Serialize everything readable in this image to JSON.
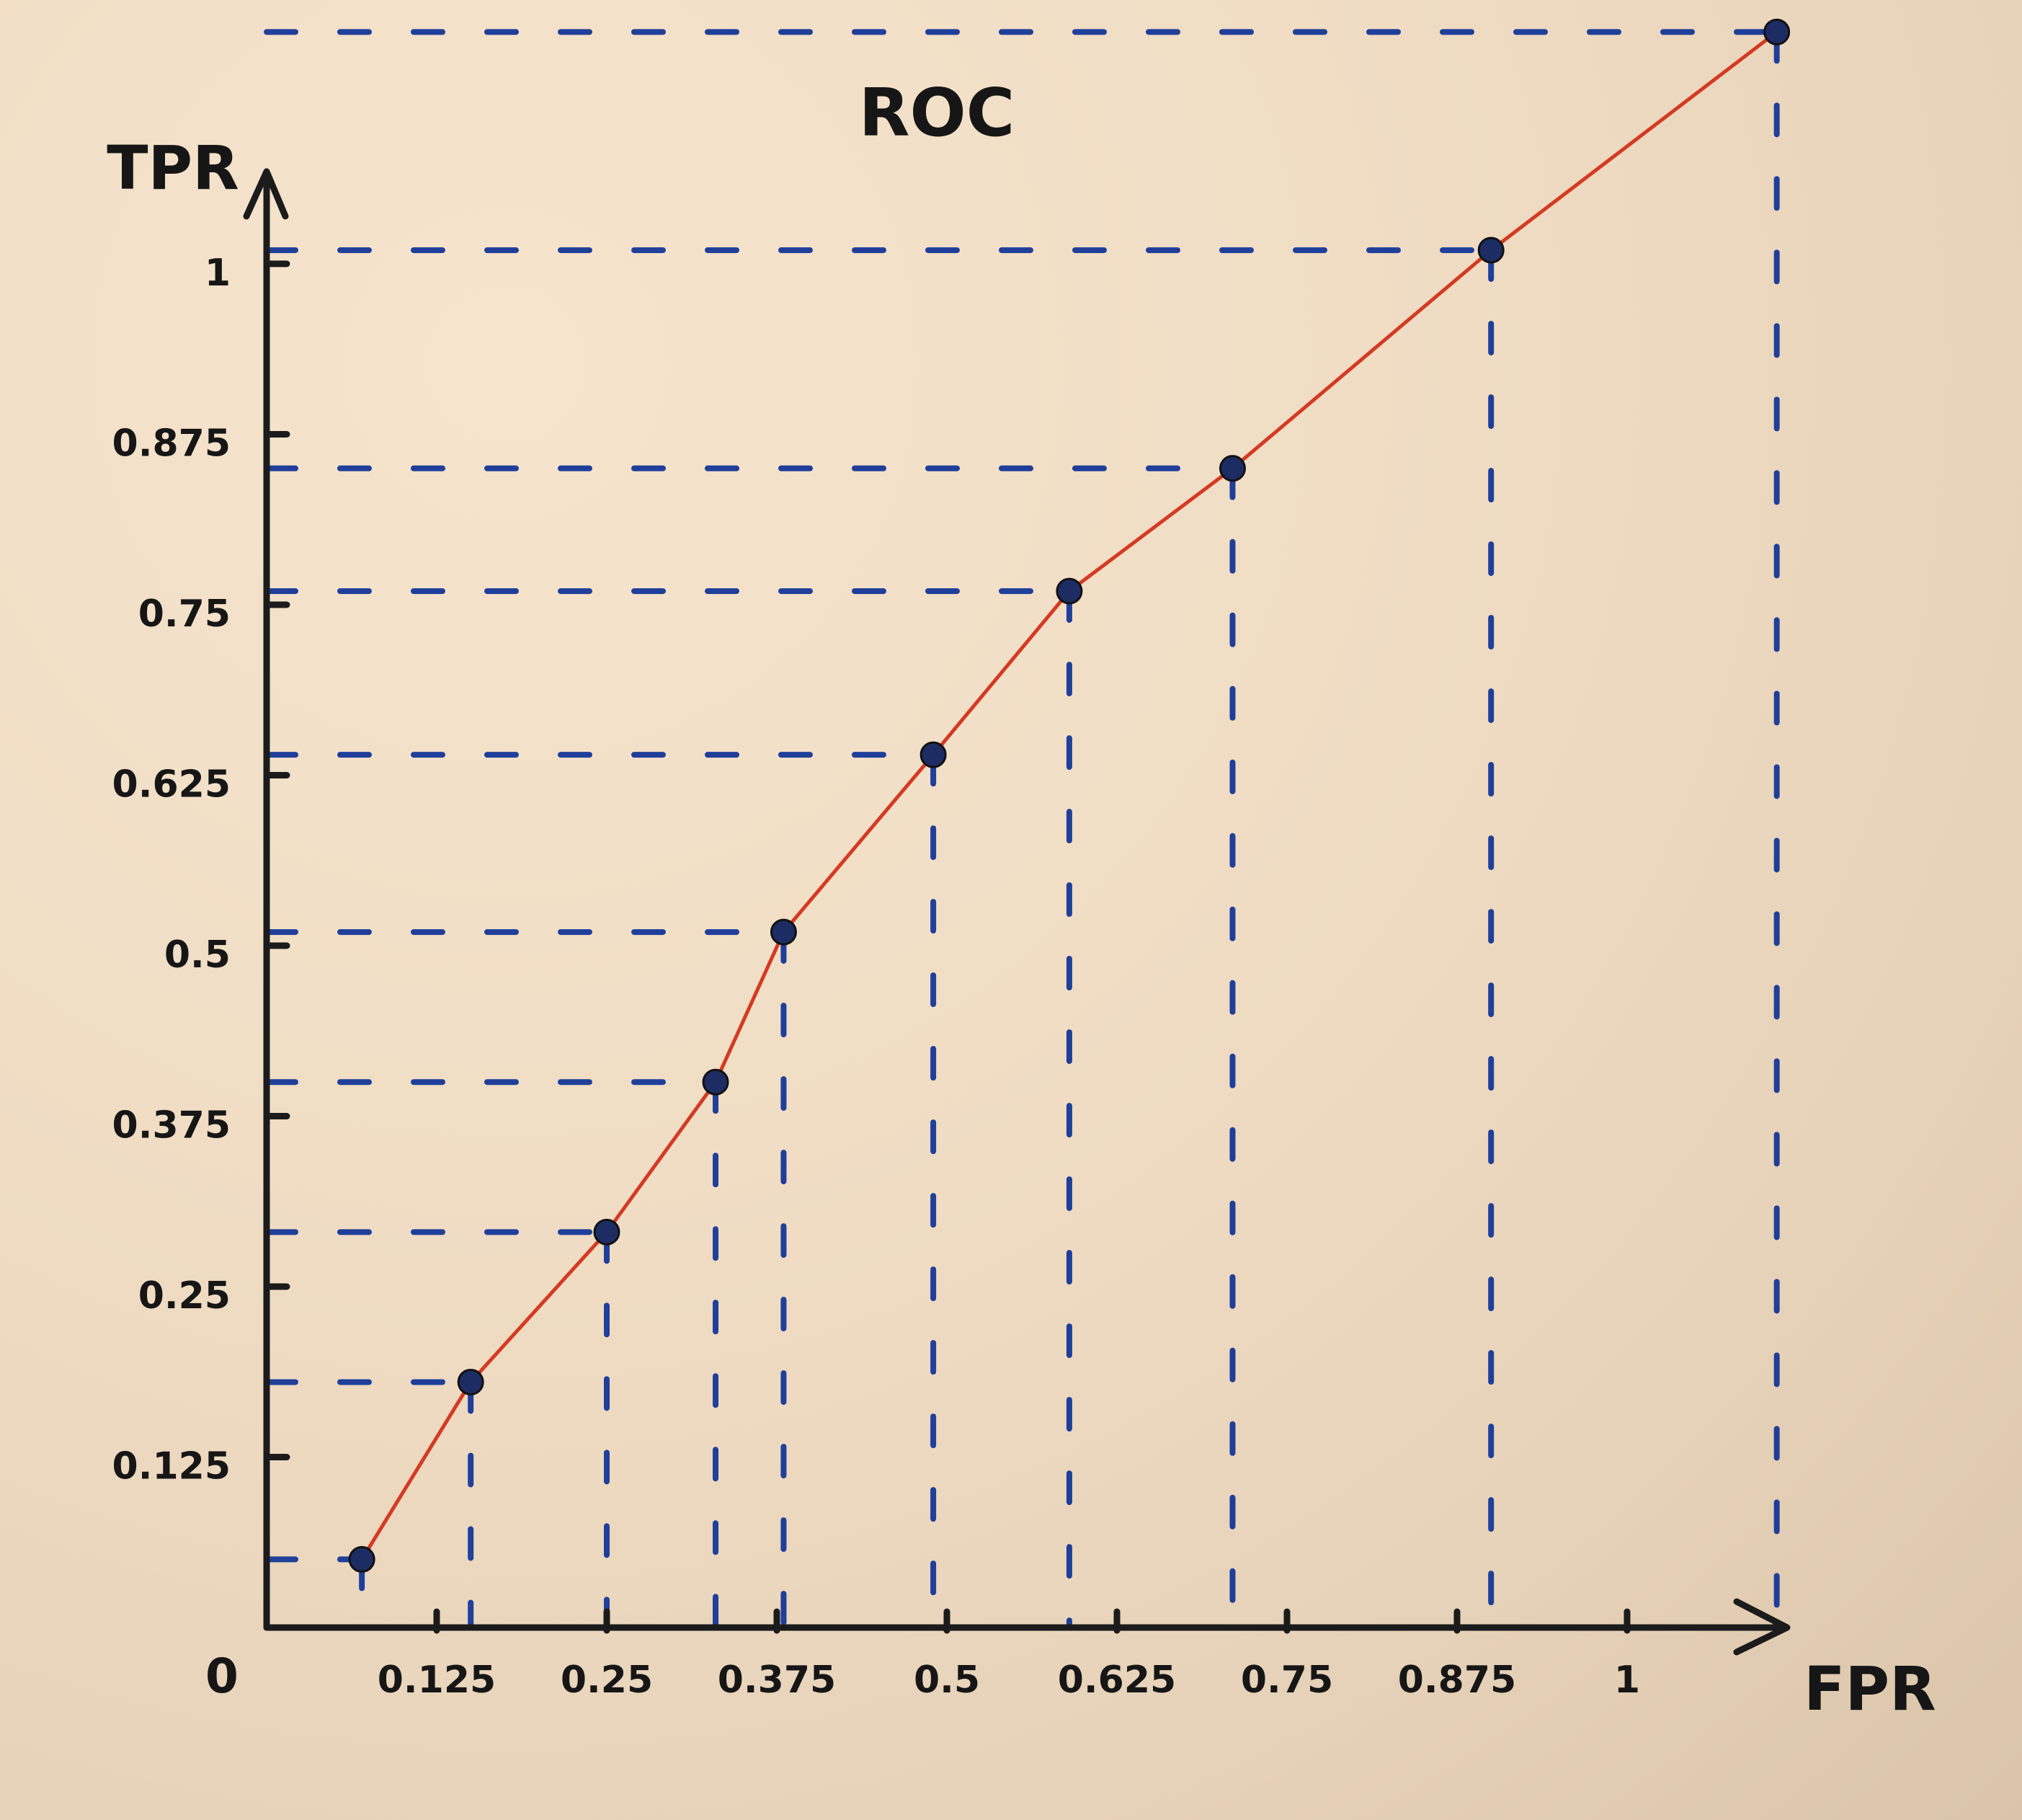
{
  "chart_data": {
    "type": "line",
    "title": "ROC",
    "xlabel": "FPR",
    "ylabel": "TPR",
    "origin_label": "0",
    "xlim": [
      0,
      1.125
    ],
    "ylim": [
      0,
      1.125
    ],
    "x_ticks": [
      {
        "value": 0.125,
        "label": "0.125"
      },
      {
        "value": 0.25,
        "label": "0.25"
      },
      {
        "value": 0.375,
        "label": "0.375"
      },
      {
        "value": 0.5,
        "label": "0.5"
      },
      {
        "value": 0.625,
        "label": "0.625"
      },
      {
        "value": 0.75,
        "label": "0.75"
      },
      {
        "value": 0.875,
        "label": "0.875"
      },
      {
        "value": 1,
        "label": "1"
      }
    ],
    "y_ticks": [
      {
        "value": 0.125,
        "label": "0.125"
      },
      {
        "value": 0.25,
        "label": "0.25"
      },
      {
        "value": 0.375,
        "label": "0.375"
      },
      {
        "value": 0.5,
        "label": "0.5"
      },
      {
        "value": 0.625,
        "label": "0.625"
      },
      {
        "value": 0.75,
        "label": "0.75"
      },
      {
        "value": 0.875,
        "label": "0.875"
      },
      {
        "value": 1,
        "label": "1"
      }
    ],
    "series": [
      {
        "color": "#d43a22",
        "marker_color": "#1d2d63",
        "guide_color": "#1f3f9a",
        "points": [
          {
            "x": 0.07,
            "y": 0.05
          },
          {
            "x": 0.15,
            "y": 0.18
          },
          {
            "x": 0.25,
            "y": 0.29
          },
          {
            "x": 0.33,
            "y": 0.4
          },
          {
            "x": 0.38,
            "y": 0.51
          },
          {
            "x": 0.49,
            "y": 0.64
          },
          {
            "x": 0.59,
            "y": 0.76
          },
          {
            "x": 0.71,
            "y": 0.85
          },
          {
            "x": 0.9,
            "y": 1.01
          },
          {
            "x": 1.11,
            "y": 1.17
          }
        ]
      }
    ]
  }
}
